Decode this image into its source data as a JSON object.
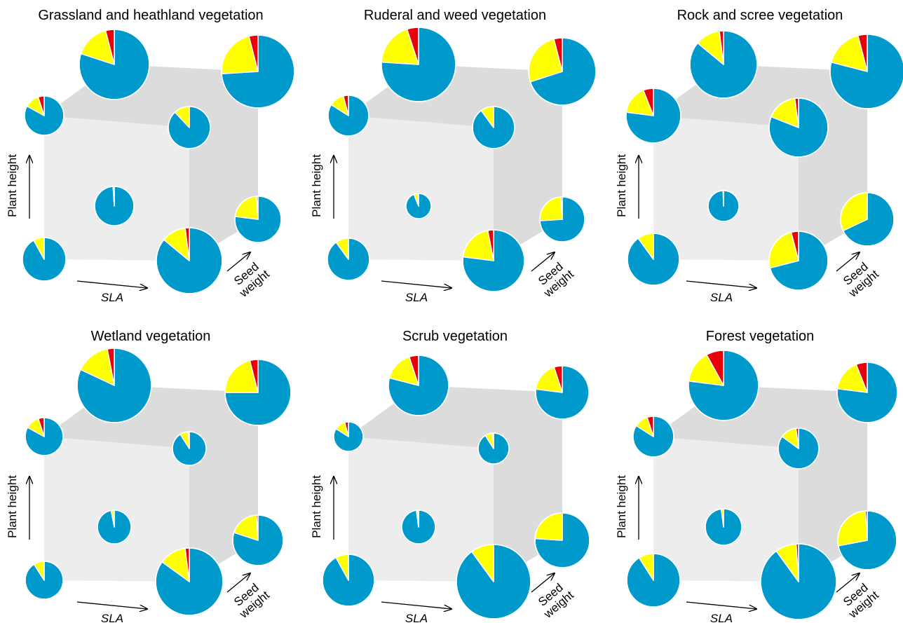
{
  "chart_data": [
    {
      "type": "pie",
      "title": "Grassland and heathland vegetation",
      "y_label": "Plant height",
      "x_label": "SLA",
      "z_label": [
        "Seed",
        "weight"
      ],
      "colors": [
        "#0099cc",
        "#ffff00",
        "#e8000b"
      ],
      "pies": [
        {
          "values": [
            92,
            8,
            0
          ],
          "size": 31
        },
        {
          "values": [
            86,
            12,
            2
          ],
          "size": 47
        },
        {
          "values": [
            83,
            12,
            5
          ],
          "size": 28
        },
        {
          "values": [
            88,
            12,
            0
          ],
          "size": 30
        },
        {
          "values": [
            99,
            1,
            0
          ],
          "size": 28
        },
        {
          "values": [
            77,
            22,
            1
          ],
          "size": 33
        },
        {
          "values": [
            80,
            16,
            4
          ],
          "size": 50
        },
        {
          "values": [
            74,
            22,
            4
          ],
          "size": 52
        }
      ]
    },
    {
      "type": "pie",
      "title": "Ruderal and weed vegetation",
      "y_label": "Plant height",
      "x_label": "SLA",
      "z_label": [
        "Seed",
        "weight"
      ],
      "colors": [
        "#0099cc",
        "#ffff00",
        "#e8000b"
      ],
      "pies": [
        {
          "values": [
            90,
            10,
            0
          ],
          "size": 30
        },
        {
          "values": [
            77,
            20,
            3
          ],
          "size": 44
        },
        {
          "values": [
            84,
            12,
            4
          ],
          "size": 29
        },
        {
          "values": [
            90,
            10,
            0
          ],
          "size": 30
        },
        {
          "values": [
            94,
            5,
            1
          ],
          "size": 18
        },
        {
          "values": [
            74,
            25,
            1
          ],
          "size": 32
        },
        {
          "values": [
            76,
            19,
            5
          ],
          "size": 53
        },
        {
          "values": [
            70,
            26,
            4
          ],
          "size": 48
        }
      ]
    },
    {
      "type": "pie",
      "title": "Rock and scree vegetation",
      "y_label": "Plant height",
      "x_label": "SLA",
      "z_label": [
        "Seed",
        "weight"
      ],
      "colors": [
        "#0099cc",
        "#ffff00",
        "#e8000b"
      ],
      "pies": [
        {
          "values": [
            90,
            10,
            0
          ],
          "size": 37
        },
        {
          "values": [
            71,
            25,
            4
          ],
          "size": 42
        },
        {
          "values": [
            77,
            17,
            6
          ],
          "size": 39
        },
        {
          "values": [
            81,
            17,
            2
          ],
          "size": 42
        },
        {
          "values": [
            99.5,
            0.5,
            0
          ],
          "size": 22
        },
        {
          "values": [
            68,
            32,
            0
          ],
          "size": 38
        },
        {
          "values": [
            86,
            12,
            2
          ],
          "size": 48
        },
        {
          "values": [
            79,
            17,
            4
          ],
          "size": 53
        }
      ]
    },
    {
      "type": "pie",
      "title": "Wetland vegetation",
      "y_label": "Plant height",
      "x_label": "SLA",
      "z_label": [
        "Seed",
        "weight"
      ],
      "colors": [
        "#0099cc",
        "#ffff00",
        "#e8000b"
      ],
      "pies": [
        {
          "values": [
            91,
            9,
            0
          ],
          "size": 27
        },
        {
          "values": [
            85,
            13,
            2
          ],
          "size": 48
        },
        {
          "values": [
            83,
            12,
            5
          ],
          "size": 27
        },
        {
          "values": [
            91,
            8,
            1
          ],
          "size": 24
        },
        {
          "values": [
            97,
            3,
            0
          ],
          "size": 24
        },
        {
          "values": [
            80,
            19,
            1
          ],
          "size": 36
        },
        {
          "values": [
            82,
            15,
            3
          ],
          "size": 53
        },
        {
          "values": [
            75,
            21,
            4
          ],
          "size": 47
        }
      ]
    },
    {
      "type": "pie",
      "title": "Scrub vegetation",
      "y_label": "Plant height",
      "x_label": "SLA",
      "z_label": [
        "Seed",
        "weight"
      ],
      "colors": [
        "#0099cc",
        "#ffff00",
        "#e8000b"
      ],
      "pies": [
        {
          "values": [
            92,
            8,
            0
          ],
          "size": 37
        },
        {
          "values": [
            90,
            10,
            0
          ],
          "size": 53
        },
        {
          "values": [
            84,
            12,
            4
          ],
          "size": 21
        },
        {
          "values": [
            91,
            8,
            1
          ],
          "size": 22
        },
        {
          "values": [
            98,
            2,
            0
          ],
          "size": 24
        },
        {
          "values": [
            76,
            24,
            0
          ],
          "size": 39
        },
        {
          "values": [
            79,
            16,
            5
          ],
          "size": 43
        },
        {
          "values": [
            77,
            18,
            5
          ],
          "size": 38
        }
      ]
    },
    {
      "type": "pie",
      "title": "Forest vegetation",
      "y_label": "Plant height",
      "x_label": "SLA",
      "z_label": [
        "Seed",
        "weight"
      ],
      "colors": [
        "#0099cc",
        "#ffff00",
        "#e8000b"
      ],
      "pies": [
        {
          "values": [
            91,
            9,
            0
          ],
          "size": 38
        },
        {
          "values": [
            90,
            9,
            1
          ],
          "size": 54
        },
        {
          "values": [
            84,
            11,
            5
          ],
          "size": 29
        },
        {
          "values": [
            85,
            13,
            2
          ],
          "size": 29
        },
        {
          "values": [
            98,
            2,
            0
          ],
          "size": 26
        },
        {
          "values": [
            72,
            27,
            1
          ],
          "size": 42
        },
        {
          "values": [
            77,
            15,
            8
          ],
          "size": 50
        },
        {
          "values": [
            77,
            17,
            6
          ],
          "size": 43
        }
      ]
    }
  ]
}
